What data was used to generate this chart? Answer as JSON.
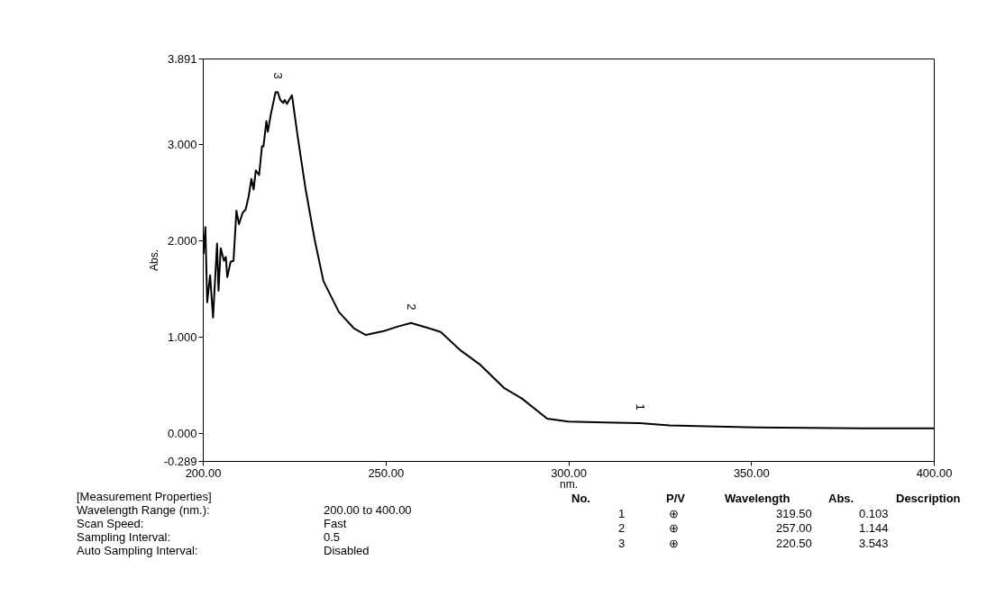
{
  "chart_data": {
    "type": "line",
    "xlabel": "nm.",
    "ylabel": "Abs.",
    "x": [
      200.2,
      200.7,
      201.2,
      202.0,
      202.8,
      203.9,
      204.3,
      204.9,
      205.8,
      206.3,
      206.7,
      207.6,
      208.4,
      209.2,
      209.9,
      210.9,
      211.7,
      212.5,
      213.3,
      213.9,
      214.5,
      215.4,
      216.2,
      216.6,
      217.4,
      217.8,
      218.6,
      219.9,
      220.5,
      221.2,
      222.0,
      222.4,
      223.0,
      224.4,
      225.2,
      226.0,
      228.1,
      230.6,
      233.0,
      237.2,
      241.3,
      244.6,
      249.5,
      253.6,
      257.0,
      261.8,
      265.1,
      270.5,
      275.9,
      282.4,
      287.3,
      294.2,
      300.0,
      310.0,
      319.5,
      327.7,
      351.4,
      380.0,
      400.0
    ],
    "series": [
      {
        "color": "#000000",
        "values": [
          1.86,
          2.14,
          1.36,
          1.64,
          1.2,
          1.97,
          1.48,
          1.92,
          1.79,
          1.83,
          1.62,
          1.78,
          1.79,
          2.31,
          2.17,
          2.29,
          2.32,
          2.45,
          2.64,
          2.53,
          2.73,
          2.68,
          2.98,
          2.98,
          3.24,
          3.13,
          3.31,
          3.54,
          3.543,
          3.46,
          3.43,
          3.46,
          3.42,
          3.51,
          3.29,
          3.07,
          2.54,
          2.01,
          1.58,
          1.26,
          1.09,
          1.02,
          1.06,
          1.11,
          1.144,
          1.09,
          1.05,
          0.86,
          0.71,
          0.47,
          0.36,
          0.15,
          0.12,
          0.11,
          0.103,
          0.08,
          0.06,
          0.05,
          0.05
        ]
      }
    ],
    "xlim": [
      200,
      400
    ],
    "ylim": [
      -0.289,
      3.891
    ],
    "xticks": [
      {
        "value": 200,
        "label": "200.00"
      },
      {
        "value": 250,
        "label": "250.00"
      },
      {
        "value": 300,
        "label": "300.00"
      },
      {
        "value": 350,
        "label": "350.00"
      },
      {
        "value": 400,
        "label": "400.00"
      }
    ],
    "yticks": [
      {
        "value": -0.289,
        "label": "-0.289"
      },
      {
        "value": 0,
        "label": "0.000"
      },
      {
        "value": 1,
        "label": "1.000"
      },
      {
        "value": 2,
        "label": "2.000"
      },
      {
        "value": 3,
        "label": "3.000"
      },
      {
        "value": 3.891,
        "label": "3.891"
      }
    ],
    "grid": false,
    "marker": "none",
    "line_style": "solid",
    "annotations": [
      {
        "text": "1",
        "x": 319.5,
        "y": 0.103
      },
      {
        "text": "2",
        "x": 257.0,
        "y": 1.144
      },
      {
        "text": "3",
        "x": 220.5,
        "y": 3.543
      },
      "[Measurement Properties]",
      "Wavelength Range (nm.):\t200.00 to 400.00",
      "Scan Speed:\tFast",
      "Sampling Interval:\t0.5",
      "Auto Sampling Interval:\tDisabled",
      "No.\tP/V\tWavelength\tAbs.\tDescription",
      "1\t⊕\t319.50\t0.103\t",
      "2\t⊕\t257.00\t1.144\t",
      "3\t⊕\t220.50\t3.543\t"
    ]
  }
}
